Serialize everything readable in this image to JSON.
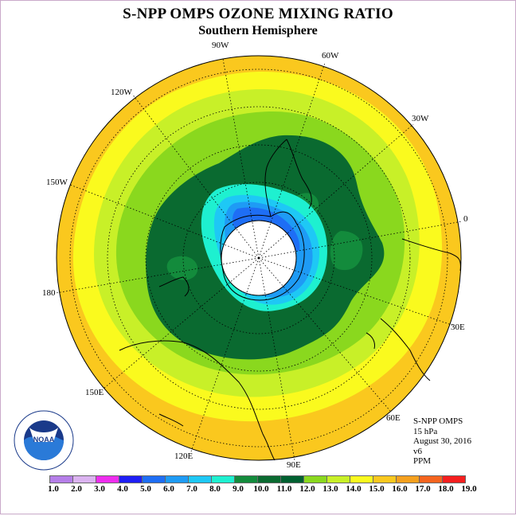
{
  "title": "S-NPP OMPS OZONE MIXING RATIO",
  "subtitle": "Southern Hemisphere",
  "longitude_labels": [
    "90W",
    "60W",
    "30W",
    "0",
    "30E",
    "60E",
    "90E",
    "120E",
    "150E",
    "180",
    "150W",
    "120W"
  ],
  "info": {
    "instrument": "S-NPP OMPS",
    "level": "15 hPa",
    "date": "August 30, 2016",
    "version": "v6",
    "units": "PPM"
  },
  "colorbar": {
    "labels": [
      "1.0",
      "2.0",
      "3.0",
      "4.0",
      "5.0",
      "6.0",
      "7.0",
      "8.0",
      "9.0",
      "10.0",
      "11.0",
      "12.0",
      "13.0",
      "14.0",
      "15.0",
      "16.0",
      "17.0",
      "18.0",
      "19.0"
    ],
    "colors": [
      "#b57ee8",
      "#dbb3f0",
      "#ee2dee",
      "#1e1ef5",
      "#1e6ef5",
      "#1e9bf5",
      "#1ec8f5",
      "#1ef0d0",
      "#138b3c",
      "#0a6a30",
      "#006030",
      "#8ad81e",
      "#c8f028",
      "#fafa1e",
      "#fac81e",
      "#f5a01e",
      "#f5641e",
      "#f51e1e",
      "#a0644a"
    ]
  },
  "logo": {
    "text": "NOAA",
    "ring_text": "NATIONAL OCEANIC AND ATMOSPHERIC ADMINISTRATION",
    "bottom_text": "U.S. DEPARTMENT OF COMMERCE",
    "icon": "noaa-logo"
  }
}
